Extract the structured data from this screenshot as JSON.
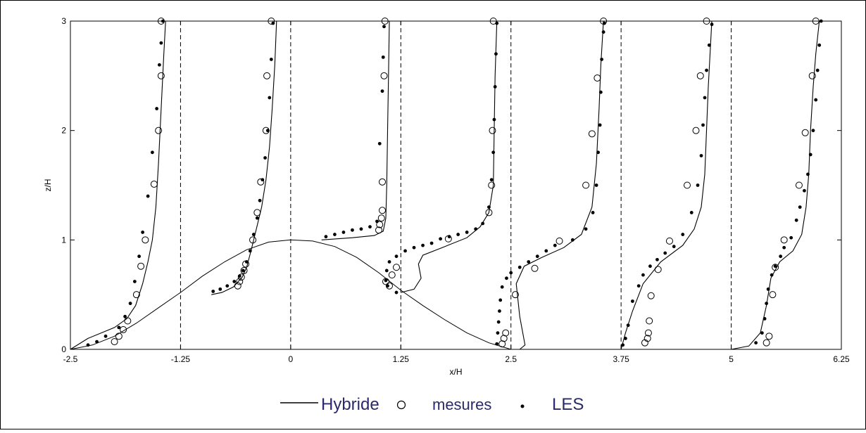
{
  "chart_data": {
    "type": "line",
    "xlabel": "x/H",
    "ylabel": "z/H",
    "xlim": [
      -2.5,
      6.25
    ],
    "ylim": [
      0,
      3
    ],
    "x_ticks": [
      -2.5,
      -1.25,
      0,
      1.25,
      2.5,
      3.75,
      5,
      6.25
    ],
    "x_tick_labels": [
      "-2.5",
      "-1.25",
      "0",
      "1.25",
      "2.5",
      "3.75",
      "5",
      "6.25"
    ],
    "y_ticks": [
      0,
      1,
      2,
      3
    ],
    "y_tick_labels": [
      "0",
      "1",
      "2",
      "3"
    ],
    "grid": false,
    "legend_position": "bottom",
    "legend": [
      {
        "label": "Hybride",
        "marker": "line"
      },
      {
        "label": "mesures",
        "marker": "open-circle"
      },
      {
        "label": "LES",
        "marker": "dot"
      }
    ],
    "reference_lines_x": [
      -1.25,
      0,
      1.25,
      2.5,
      3.75,
      5
    ],
    "hill": [
      [
        -2.5,
        0
      ],
      [
        -2.25,
        0.04
      ],
      [
        -2,
        0.12
      ],
      [
        -1.75,
        0.24
      ],
      [
        -1.5,
        0.38
      ],
      [
        -1.25,
        0.52
      ],
      [
        -1,
        0.67
      ],
      [
        -0.75,
        0.8
      ],
      [
        -0.5,
        0.91
      ],
      [
        -0.25,
        0.98
      ],
      [
        0,
        1
      ],
      [
        0.25,
        0.99
      ],
      [
        0.5,
        0.94
      ],
      [
        0.75,
        0.84
      ],
      [
        1,
        0.7
      ],
      [
        1.25,
        0.54
      ],
      [
        1.5,
        0.4
      ],
      [
        1.75,
        0.27
      ],
      [
        2,
        0.15
      ],
      [
        2.25,
        0.06
      ],
      [
        2.5,
        0
      ]
    ],
    "series": [
      {
        "name": "Hybride",
        "style": "line",
        "curves": [
          [
            [
              -2.5,
              0
            ],
            [
              -2.3,
              0.1
            ],
            [
              -2.0,
              0.2
            ],
            [
              -1.86,
              0.28
            ],
            [
              -1.76,
              0.4
            ],
            [
              -1.68,
              0.6
            ],
            [
              -1.62,
              0.8
            ],
            [
              -1.57,
              1.0
            ],
            [
              -1.53,
              1.3
            ],
            [
              -1.5,
              1.7
            ],
            [
              -1.47,
              2.2
            ],
            [
              -1.44,
              2.7
            ],
            [
              -1.42,
              3.0
            ]
          ],
          [
            [
              -0.9,
              0.5
            ],
            [
              -0.78,
              0.52
            ],
            [
              -0.65,
              0.57
            ],
            [
              -0.55,
              0.66
            ],
            [
              -0.5,
              0.75
            ],
            [
              -0.45,
              0.9
            ],
            [
              -0.39,
              1.1
            ],
            [
              -0.33,
              1.3
            ],
            [
              -0.28,
              1.55
            ],
            [
              -0.24,
              1.85
            ],
            [
              -0.21,
              2.2
            ],
            [
              -0.18,
              2.6
            ],
            [
              -0.16,
              3.0
            ]
          ],
          [
            [
              0.35,
              1.0
            ],
            [
              0.7,
              1.02
            ],
            [
              0.95,
              1.04
            ],
            [
              1.05,
              1.08
            ],
            [
              1.08,
              1.2
            ],
            [
              1.09,
              1.5
            ],
            [
              1.1,
              2.0
            ],
            [
              1.11,
              2.5
            ],
            [
              1.12,
              3.0
            ]
          ],
          [
            [
              1.25,
              0.52
            ],
            [
              1.4,
              0.55
            ],
            [
              1.48,
              0.65
            ],
            [
              1.45,
              0.78
            ],
            [
              1.5,
              0.86
            ],
            [
              1.75,
              0.94
            ],
            [
              2.0,
              1.02
            ],
            [
              2.15,
              1.12
            ],
            [
              2.25,
              1.25
            ],
            [
              2.3,
              1.5
            ],
            [
              2.31,
              2.0
            ],
            [
              2.32,
              2.5
            ],
            [
              2.34,
              3.0
            ]
          ],
          [
            [
              2.6,
              0
            ],
            [
              2.66,
              0.04
            ],
            [
              2.6,
              0.3
            ],
            [
              2.56,
              0.6
            ],
            [
              2.65,
              0.76
            ],
            [
              2.85,
              0.84
            ],
            [
              3.1,
              0.93
            ],
            [
              3.3,
              1.05
            ],
            [
              3.42,
              1.3
            ],
            [
              3.47,
              1.7
            ],
            [
              3.5,
              2.2
            ],
            [
              3.52,
              2.6
            ],
            [
              3.55,
              3.0
            ]
          ],
          [
            [
              3.75,
              0
            ],
            [
              3.8,
              0.15
            ],
            [
              3.88,
              0.35
            ],
            [
              4.0,
              0.6
            ],
            [
              4.2,
              0.8
            ],
            [
              4.45,
              0.95
            ],
            [
              4.58,
              1.1
            ],
            [
              4.66,
              1.3
            ],
            [
              4.7,
              1.6
            ],
            [
              4.72,
              2.0
            ],
            [
              4.74,
              2.4
            ],
            [
              4.76,
              2.7
            ],
            [
              4.78,
              3.0
            ]
          ],
          [
            [
              5.0,
              0
            ],
            [
              5.2,
              0.03
            ],
            [
              5.33,
              0.15
            ],
            [
              5.4,
              0.4
            ],
            [
              5.45,
              0.65
            ],
            [
              5.55,
              0.8
            ],
            [
              5.7,
              0.9
            ],
            [
              5.8,
              1.05
            ],
            [
              5.85,
              1.3
            ],
            [
              5.88,
              1.6
            ],
            [
              5.9,
              2.0
            ],
            [
              5.93,
              2.4
            ],
            [
              5.96,
              2.7
            ],
            [
              6.0,
              3.0
            ]
          ]
        ]
      },
      {
        "name": "mesures",
        "style": "open-circle",
        "points": [
          [
            -2.0,
            0.07
          ],
          [
            -1.95,
            0.12
          ],
          [
            -1.9,
            0.18
          ],
          [
            -1.85,
            0.26
          ],
          [
            -1.75,
            0.5
          ],
          [
            -1.7,
            0.76
          ],
          [
            -1.65,
            1.0
          ],
          [
            -1.55,
            1.51
          ],
          [
            -1.5,
            2.0
          ],
          [
            -1.47,
            2.5
          ],
          [
            -1.47,
            3.0
          ],
          [
            -0.6,
            0.58
          ],
          [
            -0.58,
            0.62
          ],
          [
            -0.56,
            0.66
          ],
          [
            -0.53,
            0.72
          ],
          [
            -0.51,
            0.78
          ],
          [
            -0.43,
            1.0
          ],
          [
            -0.38,
            1.25
          ],
          [
            -0.34,
            1.53
          ],
          [
            -0.28,
            2.0
          ],
          [
            -0.27,
            2.5
          ],
          [
            -0.22,
            3.0
          ],
          [
            1.0,
            1.09
          ],
          [
            1.01,
            1.14
          ],
          [
            1.03,
            1.2
          ],
          [
            1.04,
            1.27
          ],
          [
            1.04,
            1.53
          ],
          [
            1.06,
            2.5
          ],
          [
            1.07,
            3.0
          ],
          [
            1.08,
            0.62
          ],
          [
            1.12,
            0.58
          ],
          [
            1.15,
            0.68
          ],
          [
            1.2,
            0.75
          ],
          [
            1.79,
            1.01
          ],
          [
            2.25,
            1.25
          ],
          [
            2.28,
            1.5
          ],
          [
            2.29,
            2.0
          ],
          [
            2.3,
            3.0
          ],
          [
            2.4,
            0.05
          ],
          [
            2.42,
            0.1
          ],
          [
            2.44,
            0.15
          ],
          [
            2.55,
            0.5
          ],
          [
            2.77,
            0.74
          ],
          [
            3.05,
            0.99
          ],
          [
            3.35,
            1.5
          ],
          [
            3.42,
            1.97
          ],
          [
            3.48,
            2.48
          ],
          [
            3.55,
            3.0
          ],
          [
            4.02,
            0.06
          ],
          [
            4.05,
            0.1
          ],
          [
            4.06,
            0.15
          ],
          [
            4.07,
            0.26
          ],
          [
            4.09,
            0.49
          ],
          [
            4.17,
            0.73
          ],
          [
            4.3,
            0.99
          ],
          [
            4.5,
            1.5
          ],
          [
            4.6,
            2.0
          ],
          [
            4.65,
            2.5
          ],
          [
            4.72,
            3.0
          ],
          [
            5.4,
            0.06
          ],
          [
            5.43,
            0.12
          ],
          [
            5.47,
            0.5
          ],
          [
            5.5,
            0.75
          ],
          [
            5.6,
            1.0
          ],
          [
            5.77,
            1.5
          ],
          [
            5.84,
            1.98
          ],
          [
            5.92,
            2.5
          ],
          [
            5.96,
            3.0
          ]
        ]
      },
      {
        "name": "LES",
        "style": "dot",
        "points": [
          [
            -2.3,
            0.04
          ],
          [
            -2.2,
            0.07
          ],
          [
            -2.1,
            0.12
          ],
          [
            -1.95,
            0.2
          ],
          [
            -1.88,
            0.3
          ],
          [
            -1.82,
            0.42
          ],
          [
            -1.77,
            0.62
          ],
          [
            -1.72,
            0.85
          ],
          [
            -1.68,
            1.07
          ],
          [
            -1.62,
            1.4
          ],
          [
            -1.57,
            1.8
          ],
          [
            -1.52,
            2.2
          ],
          [
            -1.49,
            2.6
          ],
          [
            -1.47,
            2.8
          ],
          [
            -1.45,
            3.0
          ],
          [
            -0.88,
            0.53
          ],
          [
            -0.8,
            0.55
          ],
          [
            -0.72,
            0.58
          ],
          [
            -0.64,
            0.62
          ],
          [
            -0.58,
            0.67
          ],
          [
            -0.54,
            0.72
          ],
          [
            -0.5,
            0.8
          ],
          [
            -0.46,
            0.9
          ],
          [
            -0.42,
            1.05
          ],
          [
            -0.38,
            1.2
          ],
          [
            -0.35,
            1.36
          ],
          [
            -0.32,
            1.55
          ],
          [
            -0.29,
            1.75
          ],
          [
            -0.26,
            2.0
          ],
          [
            -0.24,
            2.3
          ],
          [
            -0.22,
            2.65
          ],
          [
            -0.2,
            2.98
          ],
          [
            0.4,
            1.03
          ],
          [
            0.5,
            1.05
          ],
          [
            0.6,
            1.07
          ],
          [
            0.7,
            1.09
          ],
          [
            0.8,
            1.1
          ],
          [
            0.9,
            1.12
          ],
          [
            0.98,
            1.17
          ],
          [
            1.01,
            1.88
          ],
          [
            1.04,
            2.36
          ],
          [
            1.05,
            2.67
          ],
          [
            1.06,
            2.95
          ],
          [
            1.2,
            0.52
          ],
          [
            1.1,
            0.58
          ],
          [
            1.08,
            0.63
          ],
          [
            1.09,
            0.72
          ],
          [
            1.12,
            0.8
          ],
          [
            1.2,
            0.85
          ],
          [
            1.3,
            0.9
          ],
          [
            1.4,
            0.93
          ],
          [
            1.5,
            0.95
          ],
          [
            1.6,
            0.97
          ],
          [
            1.7,
            1.01
          ],
          [
            1.8,
            1.03
          ],
          [
            1.9,
            1.05
          ],
          [
            2.0,
            1.07
          ],
          [
            2.1,
            1.1
          ],
          [
            2.18,
            1.15
          ],
          [
            2.25,
            1.3
          ],
          [
            2.28,
            1.55
          ],
          [
            2.3,
            1.8
          ],
          [
            2.31,
            2.1
          ],
          [
            2.32,
            2.4
          ],
          [
            2.33,
            2.7
          ],
          [
            2.34,
            2.98
          ],
          [
            2.34,
            0.05
          ],
          [
            2.35,
            0.15
          ],
          [
            2.36,
            0.25
          ],
          [
            2.37,
            0.35
          ],
          [
            2.38,
            0.45
          ],
          [
            2.4,
            0.57
          ],
          [
            2.45,
            0.65
          ],
          [
            2.5,
            0.7
          ],
          [
            2.6,
            0.75
          ],
          [
            2.7,
            0.8
          ],
          [
            2.8,
            0.85
          ],
          [
            2.9,
            0.9
          ],
          [
            3.0,
            0.95
          ],
          [
            3.2,
            1.0
          ],
          [
            3.35,
            1.1
          ],
          [
            3.43,
            1.25
          ],
          [
            3.47,
            1.5
          ],
          [
            3.49,
            1.8
          ],
          [
            3.51,
            2.05
          ],
          [
            3.52,
            2.35
          ],
          [
            3.53,
            2.65
          ],
          [
            3.55,
            2.9
          ],
          [
            3.56,
            2.98
          ],
          [
            3.77,
            0.04
          ],
          [
            3.8,
            0.1
          ],
          [
            3.83,
            0.22
          ],
          [
            3.88,
            0.44
          ],
          [
            3.95,
            0.58
          ],
          [
            4.0,
            0.68
          ],
          [
            4.08,
            0.76
          ],
          [
            4.16,
            0.82
          ],
          [
            4.25,
            0.88
          ],
          [
            4.35,
            0.94
          ],
          [
            4.45,
            1.05
          ],
          [
            4.55,
            1.25
          ],
          [
            4.62,
            1.5
          ],
          [
            4.66,
            1.77
          ],
          [
            4.68,
            2.05
          ],
          [
            4.7,
            2.3
          ],
          [
            4.72,
            2.55
          ],
          [
            4.75,
            2.78
          ],
          [
            4.78,
            2.97
          ],
          [
            5.28,
            0.06
          ],
          [
            5.35,
            0.15
          ],
          [
            5.38,
            0.28
          ],
          [
            5.4,
            0.42
          ],
          [
            5.42,
            0.55
          ],
          [
            5.46,
            0.68
          ],
          [
            5.5,
            0.76
          ],
          [
            5.56,
            0.85
          ],
          [
            5.6,
            0.93
          ],
          [
            5.68,
            1.02
          ],
          [
            5.74,
            1.18
          ],
          [
            5.78,
            1.3
          ],
          [
            5.83,
            1.45
          ],
          [
            5.87,
            1.6
          ],
          [
            5.9,
            1.78
          ],
          [
            5.93,
            2.0
          ],
          [
            5.96,
            2.28
          ],
          [
            5.98,
            2.55
          ],
          [
            6.0,
            2.78
          ],
          [
            6.02,
            3.0
          ]
        ]
      }
    ]
  }
}
